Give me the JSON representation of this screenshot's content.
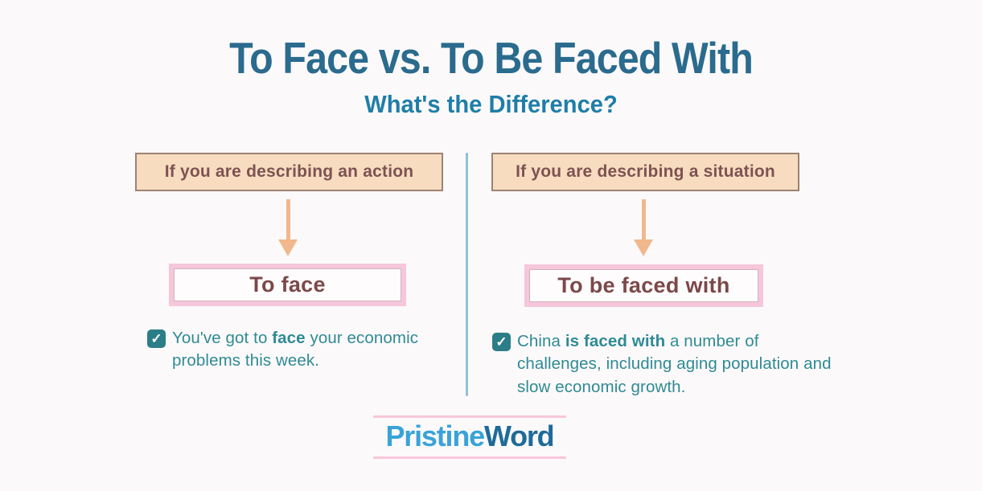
{
  "header": {
    "title": "To Face vs. To Be Faced With",
    "subtitle": "What's the Difference?"
  },
  "columns": [
    {
      "condition": "If you are describing an action",
      "term": "To face",
      "example": {
        "pre": "You've got to ",
        "bold": "face",
        "post": " your economic problems this week."
      }
    },
    {
      "condition": "If you are describing a situation",
      "term": "To be faced with",
      "example": {
        "pre": "China ",
        "bold": "is faced with",
        "post": " a number of challenges, including aging population and slow economic growth."
      }
    }
  ],
  "footer": {
    "logo_primary": "Pristine",
    "logo_secondary": "Word"
  },
  "icons": {
    "checkmark": "✓"
  },
  "palette": {
    "background": "#fcf9fa",
    "title": "#2a6b8e",
    "subtitle": "#1f7ea7",
    "condition_bg": "#f8dcc0",
    "condition_border": "#9e8272",
    "condition_text": "#7d5252",
    "arrow": "#f0b88c",
    "term_border": "#f6c6db",
    "term_text": "#7c4848",
    "example_text": "#2e8b94",
    "checkbox_bg": "#2b7e87",
    "divider": "#8fc1d7",
    "logo_primary": "#39a3d8",
    "logo_secondary": "#1e6b99",
    "logo_rule": "#f8c8db"
  }
}
